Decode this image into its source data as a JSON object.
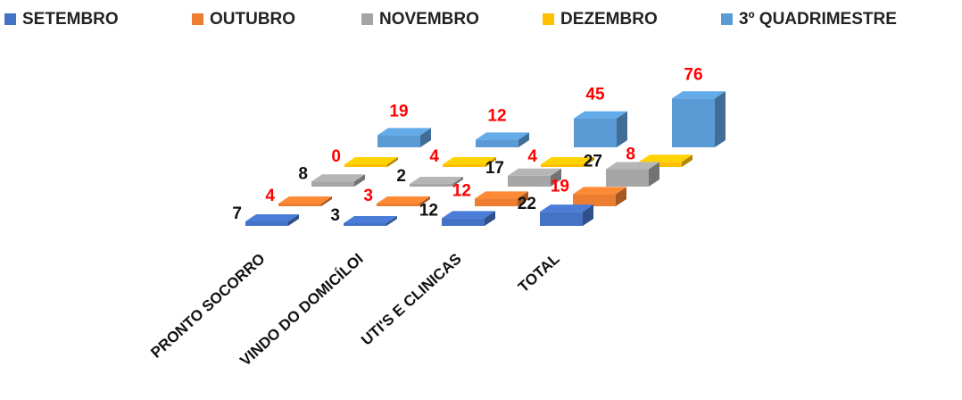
{
  "chart_data": {
    "type": "bar3d",
    "categories": [
      "PRONTO SOCORRO",
      "VINDO DO DOMICÍLOI",
      "UTI'S E CLINICAS",
      "TOTAL"
    ],
    "series": [
      {
        "name": "SETEMBRO",
        "color": "#4472c4",
        "label_color": "#111111",
        "values": [
          7,
          3,
          12,
          22
        ]
      },
      {
        "name": "OUTUBRO",
        "color": "#ed7d31",
        "label_color": "#ff0000",
        "values": [
          4,
          3,
          12,
          19
        ]
      },
      {
        "name": "NOVEMBRO",
        "color": "#a5a5a5",
        "label_color": "#111111",
        "values": [
          8,
          2,
          17,
          27
        ]
      },
      {
        "name": "DEZEMBRO",
        "color": "#ffc000",
        "label_color": "#ff0000",
        "values": [
          0,
          4,
          4,
          8
        ]
      },
      {
        "name": "3º QUADRIMESTRE",
        "color": "#5b9bd5",
        "label_color": "#ff0000",
        "values": [
          19,
          12,
          45,
          76
        ]
      }
    ],
    "legend": "top"
  }
}
